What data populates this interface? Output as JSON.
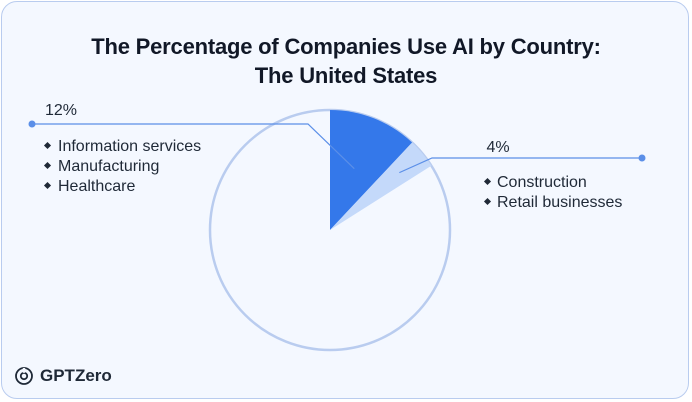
{
  "chart_data": {
    "type": "pie",
    "title": "The Percentage of Companies Use AI by Country:",
    "subtitle": "The United States",
    "slices": [
      {
        "label": "12%",
        "value": 12,
        "color": "#3478ea",
        "sectors": [
          "Information services",
          "Manufacturing",
          "Healthcare"
        ]
      },
      {
        "label": "4%",
        "value": 4,
        "color": "#c4d9fa",
        "sectors": [
          "Construction",
          "Retail businesses"
        ]
      }
    ],
    "total": 100,
    "remainder_color": "#f4f8ff",
    "outline_color": "#b9ccef",
    "leader_color": "#5b8fe8"
  },
  "brand": {
    "name": "GPTZero"
  }
}
